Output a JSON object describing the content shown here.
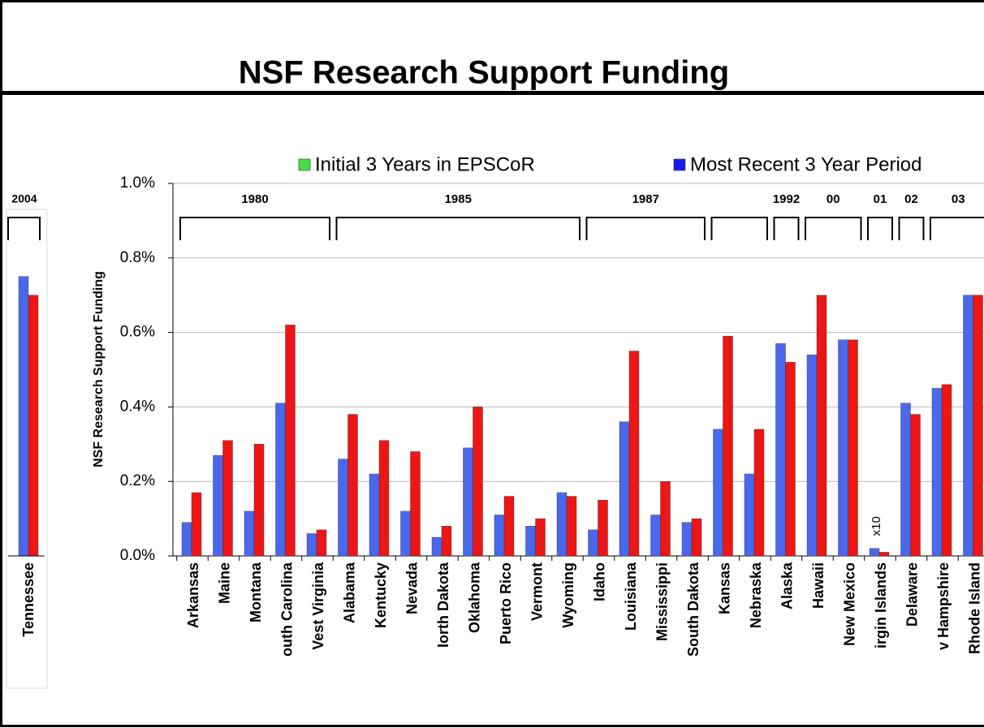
{
  "chart_data": {
    "type": "bar",
    "title": "NSF Research Support Funding",
    "y_label": "NSF Research Support Funding",
    "categories": [
      "Arkansas",
      "Maine",
      "Montana",
      "outh Carolina",
      "Vest Virginia",
      "Alabama",
      "Kentucky",
      "Nevada",
      "Iorth Dakota",
      "Oklahoma",
      "Puerto Rico",
      "Vermont",
      "Wyoming",
      "Idaho",
      "Louisiana",
      "Mississippi",
      "South Dakota",
      "Kansas",
      "Nebraska",
      "Alaska",
      "Hawaii",
      "New Mexico",
      "irgin Islands",
      "Delaware",
      "v Hampshire",
      "Rhode Island"
    ],
    "series": [
      {
        "name": "Initial 3 Years in EPSCoR",
        "color": "#4a68ec",
        "legend_color": "#44e044",
        "values": [
          0.09,
          0.27,
          0.12,
          0.41,
          0.06,
          0.26,
          0.22,
          0.12,
          0.05,
          0.29,
          0.11,
          0.08,
          0.17,
          0.07,
          0.36,
          0.11,
          0.09,
          0.34,
          0.22,
          0.57,
          0.54,
          0.58,
          0.02,
          0.41,
          0.45,
          0.7
        ]
      },
      {
        "name": "Most Recent 3 Year Period",
        "color": "#ee1515",
        "legend_color": "#1a1aee",
        "values": [
          0.17,
          0.31,
          0.3,
          0.62,
          0.07,
          0.38,
          0.31,
          0.28,
          0.08,
          0.4,
          0.16,
          0.1,
          0.16,
          0.15,
          0.55,
          0.2,
          0.1,
          0.59,
          0.34,
          0.52,
          0.7,
          0.58,
          0.01,
          0.38,
          0.46,
          0.7
        ]
      }
    ],
    "ylim": [
      0,
      1.0
    ],
    "yticks": [
      {
        "value": 0,
        "label": "0.0%"
      },
      {
        "value": 0.2,
        "label": "0.2%"
      },
      {
        "value": 0.4,
        "label": "0.4%"
      },
      {
        "value": 0.6,
        "label": "0.6%"
      },
      {
        "value": 0.8,
        "label": "0.8%"
      },
      {
        "value": 1.0,
        "label": "1.0%"
      }
    ],
    "grid": true,
    "groups": [
      {
        "label": "1980",
        "start": 0,
        "end": 4
      },
      {
        "label": "1985",
        "start": 5,
        "end": 12
      },
      {
        "label": "1987",
        "start": 13,
        "end": 16
      },
      {
        "start": 17,
        "end": 18
      },
      {
        "label": "1992",
        "start": 19,
        "end": 19
      },
      {
        "label": "00",
        "start": 20,
        "end": 21
      },
      {
        "label": "01",
        "start": 22,
        "end": 22
      },
      {
        "label": "02",
        "start": 23,
        "end": 23
      },
      {
        "label": "03",
        "start": 24,
        "end": 25
      }
    ],
    "annotation": {
      "text": "x10",
      "category": 22
    },
    "inset": {
      "category": "Tennessee",
      "group": "2004",
      "values": [
        0.75,
        0.7
      ]
    }
  }
}
